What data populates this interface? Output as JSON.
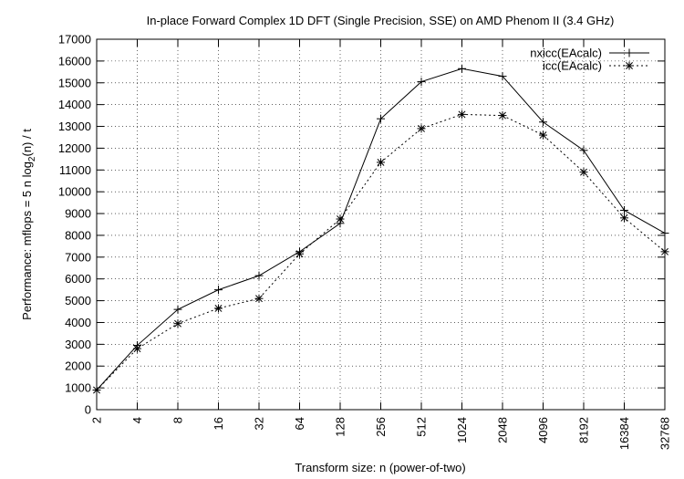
{
  "chart_data": {
    "type": "line",
    "title": "In-place Forward Complex 1D DFT (Single Precision, SSE) on AMD Phenom II (3.4 GHz)",
    "xlabel": "Transform size: n (power-of-two)",
    "ylabel": "Performance: mflops = 5 n log2(n) / t",
    "ylabel_parts": {
      "prefix": "Performance: mflops = 5 n log",
      "subscript": "2",
      "suffix": "(n) / t"
    },
    "categories": [
      "2",
      "4",
      "8",
      "16",
      "32",
      "64",
      "128",
      "256",
      "512",
      "1024",
      "2048",
      "4096",
      "8192",
      "16384",
      "32768"
    ],
    "ylim": [
      0,
      17000
    ],
    "yticks": [
      0,
      1000,
      2000,
      3000,
      4000,
      5000,
      6000,
      7000,
      8000,
      9000,
      10000,
      11000,
      12000,
      13000,
      14000,
      15000,
      16000,
      17000
    ],
    "grid": true,
    "legend_position": "top-right",
    "series": [
      {
        "name": "nxicc(EAcalc)",
        "line_style": "solid",
        "marker": "plus",
        "color": "#000000",
        "values": [
          900,
          2950,
          4600,
          5500,
          6150,
          7250,
          8550,
          13350,
          15050,
          15650,
          15300,
          13200,
          11900,
          9150,
          8100
        ]
      },
      {
        "name": "icc(EAcalc)",
        "line_style": "dotted",
        "marker": "star",
        "color": "#000000",
        "values": [
          900,
          2800,
          3950,
          4650,
          5100,
          7150,
          8750,
          11350,
          12900,
          13550,
          13500,
          12600,
          10900,
          8800,
          7250
        ]
      }
    ]
  }
}
